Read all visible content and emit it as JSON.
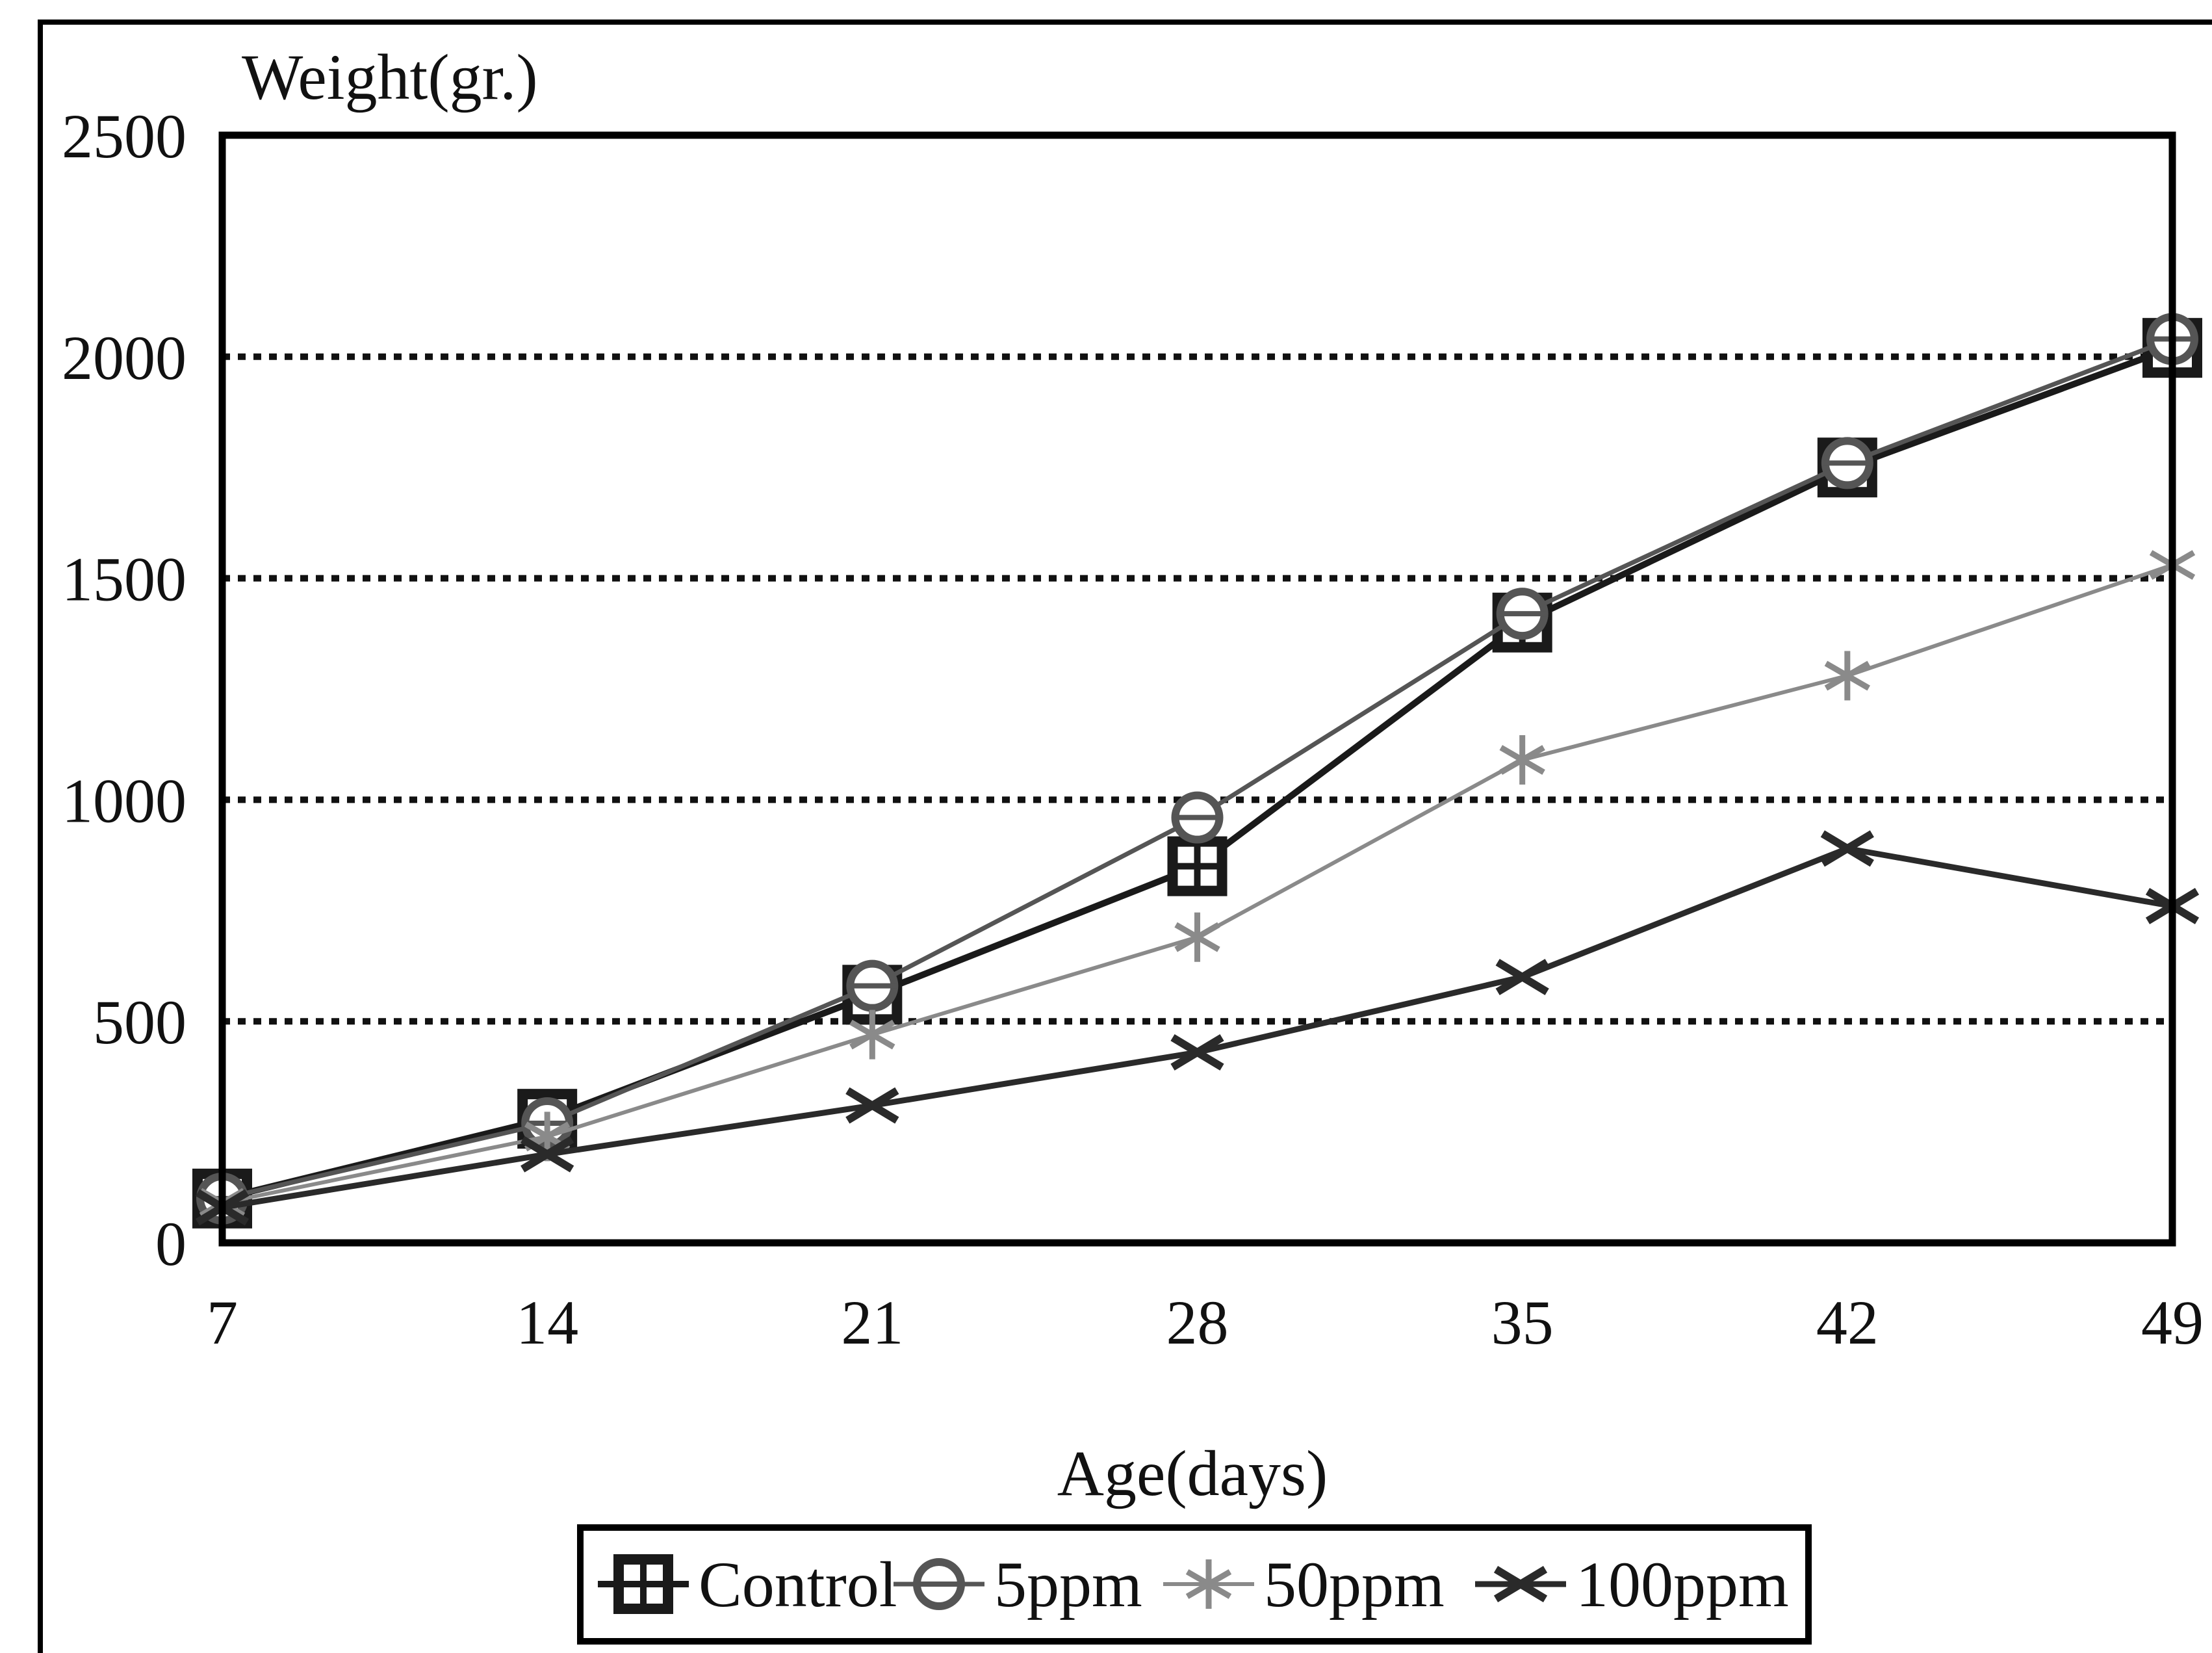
{
  "colors": {
    "control": "#1a1a1a",
    "ppm5": "#555555",
    "ppm50": "#8a8a8a",
    "ppm100": "#2a2a2a",
    "grid": "#111111",
    "frame": "#000000"
  },
  "chart_data": {
    "type": "line",
    "xlabel": "Age(days)",
    "ylabel": "Weight(gr.)",
    "xlim": [
      7,
      49
    ],
    "ylim": [
      0,
      2500
    ],
    "x_ticks": [
      "7",
      "14",
      "21",
      "28",
      "35",
      "42",
      "49"
    ],
    "y_ticks": [
      "0",
      "500",
      "1000",
      "1500",
      "2000",
      "2500"
    ],
    "grid": "horizontal dotted",
    "legend_position": "bottom",
    "x": [
      7,
      14,
      21,
      28,
      35,
      42,
      49
    ],
    "series": [
      {
        "name": "Control",
        "marker": "square",
        "values": [
          100,
          280,
          560,
          850,
          1400,
          1750,
          2020
        ]
      },
      {
        "name": "5ppm",
        "marker": "circle",
        "values": [
          100,
          270,
          580,
          960,
          1420,
          1760,
          2040
        ]
      },
      {
        "name": "50ppm",
        "marker": "star",
        "values": [
          90,
          240,
          470,
          690,
          1090,
          1280,
          1530
        ]
      },
      {
        "name": "100ppm",
        "marker": "x",
        "values": [
          80,
          200,
          310,
          430,
          600,
          890,
          760
        ]
      }
    ]
  }
}
